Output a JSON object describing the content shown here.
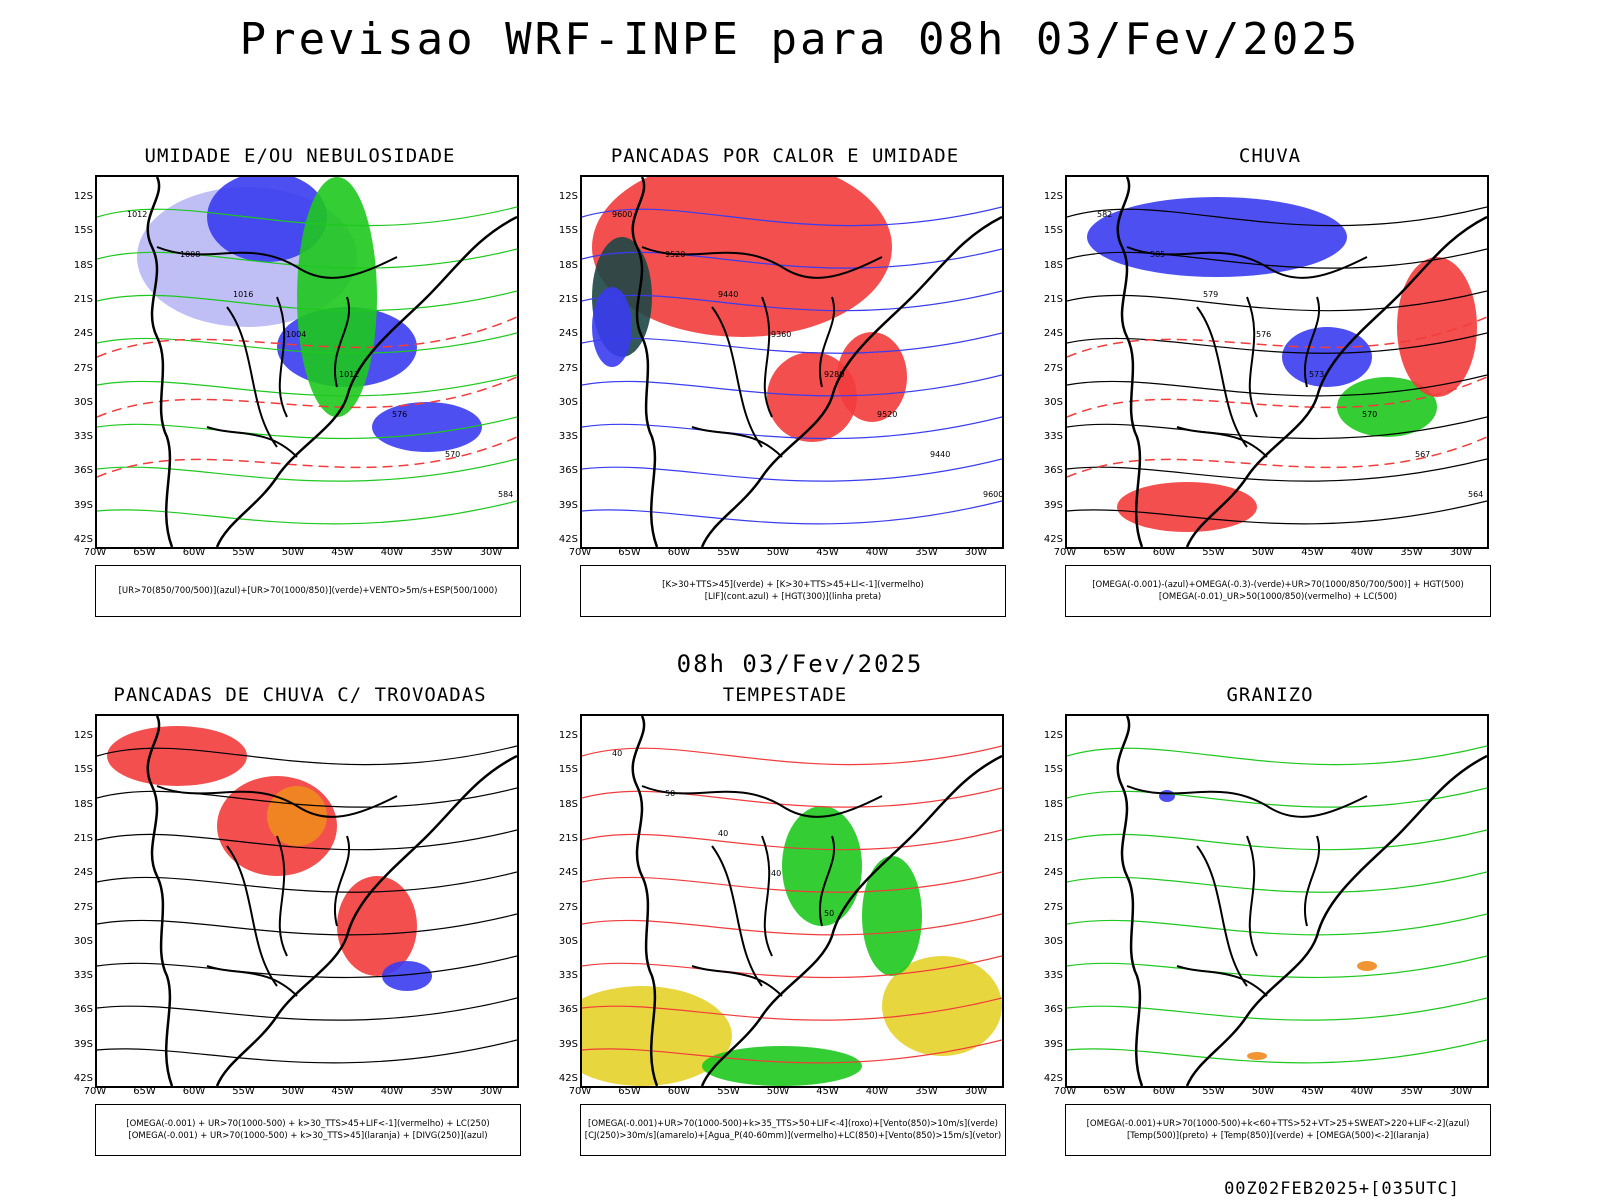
{
  "title": "Previsao WRF-INPE  para 08h 03/Fev/2025",
  "middle_title": "08h 03/Fev/2025",
  "footer": "00Z02FEB2025+[035UTC]",
  "lat_labels": [
    "12S",
    "15S",
    "18S",
    "21S",
    "24S",
    "27S",
    "30S",
    "33S",
    "36S",
    "39S",
    "42S"
  ],
  "lon_labels": [
    "70W",
    "65W",
    "60W",
    "55W",
    "50W",
    "45W",
    "40W",
    "35W",
    "30W"
  ],
  "colors": {
    "blue": "#3a3cf0",
    "lightblue": "#b8b8f4",
    "green": "#1ec81e",
    "red": "#f23c3c",
    "orange": "#f08a1e",
    "yellow": "#e6d22a",
    "darkteal": "#1e4646",
    "contour": "#000000"
  },
  "panels": [
    {
      "title": "UMIDADE E/OU NEBULOSIDADE",
      "legend": [
        "[UR>70(850/700/500)](azul)+[UR>70(1000/850)](verde)+VENTO>5m/s+ESP(500/1000)"
      ],
      "contour_labels": [
        "1012",
        "1008",
        "1016",
        "1004",
        "1012",
        "576",
        "570",
        "584"
      ]
    },
    {
      "title": "PANCADAS POR CALOR E UMIDADE",
      "legend": [
        "[K>30+TTS>45](verde) + [K>30+TTS>45+LI<-1](vermelho)",
        "[LIF](cont.azul) + [HGT(300)](linha preta)"
      ],
      "contour_labels": [
        "9600",
        "9520",
        "9440",
        "9360",
        "9280",
        "9520",
        "9440",
        "9600"
      ]
    },
    {
      "title": "CHUVA",
      "legend": [
        "[OMEGA(-0.001)-(azul)+OMEGA(-0.3)-(verde)+UR>70(1000/850/700/500)] + HGT(500)",
        "[OMEGA(-0.01)_UR>50(1000/850)(vermelho) + LC(500)"
      ],
      "contour_labels": [
        "582",
        "585",
        "579",
        "576",
        "573",
        "570",
        "567",
        "564"
      ]
    },
    {
      "title": "PANCADAS DE CHUVA C/ TROVOADAS",
      "legend": [
        "[OMEGA(-0.001) + UR>70(1000-500) + k>30_TTS>45+LIF<-1](vermelho) + LC(250)",
        "[OMEGA(-0.001) + UR>70(1000-500) + k>30_TTS>45](laranja) + [DIVG(250)](azul)"
      ],
      "contour_labels": []
    },
    {
      "title": "TEMPESTADE",
      "legend": [
        "[OMEGA(-0.001)+UR>70(1000-500)+k>35_TTS>50+LIF<-4](roxo)+[Vento(850)>10m/s](verde)",
        "[CJ(250)>30m/s](amarelo)+[Agua_P(40-60mm)](vermelho)+LC(850)+[Vento(850)>15m/s](vetor)"
      ],
      "contour_labels": [
        "40",
        "50",
        "40",
        "40",
        "50"
      ]
    },
    {
      "title": "GRANIZO",
      "legend": [
        "[OMEGA(-0.001)+UR>70(1000-500)+k<60+TTS>52+VT>25+SWEAT>220+LIF<-2](azul)",
        "[Temp(500)](preto) + [Temp(850)](verde) + [OMEGA(500)<-2](laranja)"
      ],
      "contour_labels": []
    }
  ]
}
